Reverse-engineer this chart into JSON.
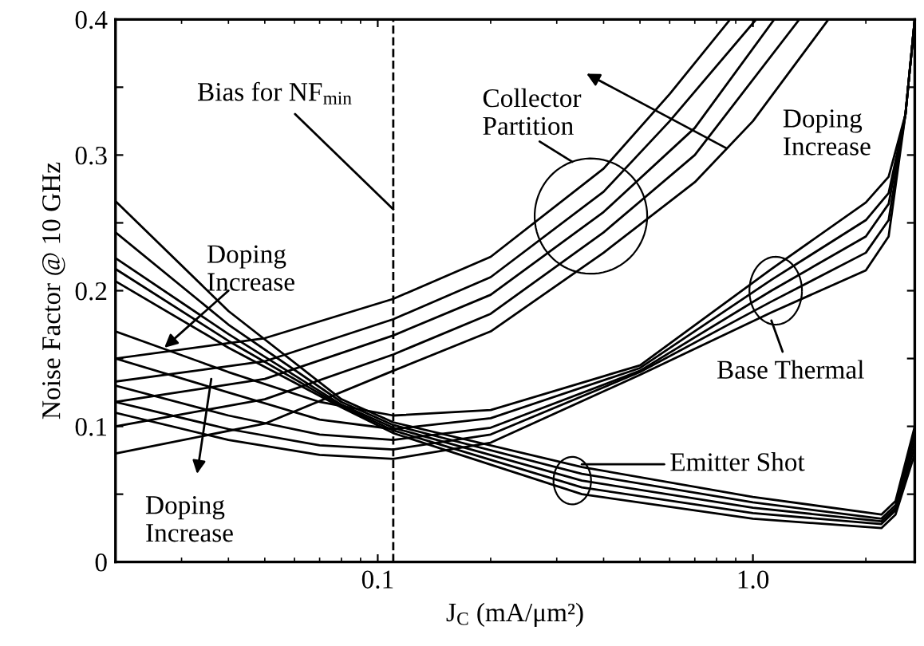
{
  "chart_data": {
    "type": "line",
    "xlabel": "J$_{C}$ (mA/μm²)",
    "ylabel": "Noise Factor @ 10 GHz",
    "log": "x",
    "grid": false,
    "marker": "none",
    "line_style": "solid",
    "xlim": [
      0.02,
      2.7
    ],
    "ylim": [
      0,
      0.4
    ],
    "xticks": [
      0.1,
      {
        "value": 1.0,
        "label": "1.0"
      }
    ],
    "yticks": [
      0,
      {
        "value": 0.05,
        "label": null
      },
      0.1,
      {
        "value": 0.15,
        "label": null
      },
      0.2,
      {
        "value": 0.25,
        "label": null
      },
      0.3,
      {
        "value": 0.35,
        "label": null
      },
      0.4
    ],
    "series": [
      {
        "color": "#000000",
        "x": [
          0.02,
          0.05,
          0.11,
          0.2,
          0.4,
          0.6,
          0.87
        ],
        "values": [
          0.15,
          0.165,
          0.194,
          0.225,
          0.29,
          0.345,
          0.4
        ]
      },
      {
        "color": "#000000",
        "x": [
          0.02,
          0.05,
          0.11,
          0.2,
          0.4,
          0.6,
          1.02
        ],
        "values": [
          0.133,
          0.148,
          0.179,
          0.21,
          0.273,
          0.325,
          0.4
        ]
      },
      {
        "color": "#000000",
        "x": [
          0.02,
          0.05,
          0.11,
          0.2,
          0.4,
          0.7,
          1.14
        ],
        "values": [
          0.118,
          0.135,
          0.167,
          0.197,
          0.258,
          0.32,
          0.4
        ]
      },
      {
        "color": "#000000",
        "x": [
          0.02,
          0.05,
          0.11,
          0.2,
          0.4,
          0.7,
          1.33
        ],
        "values": [
          0.1,
          0.12,
          0.153,
          0.183,
          0.243,
          0.3,
          0.4
        ]
      },
      {
        "color": "#000000",
        "x": [
          0.02,
          0.05,
          0.11,
          0.2,
          0.4,
          0.7,
          1.0,
          1.59
        ],
        "values": [
          0.08,
          0.102,
          0.141,
          0.17,
          0.228,
          0.28,
          0.325,
          0.4
        ]
      },
      {
        "color": "#000000",
        "x": [
          0.02,
          0.04,
          0.07,
          0.11,
          0.2,
          0.5,
          1.12,
          2.0,
          2.3,
          2.55,
          2.7
        ],
        "values": [
          0.17,
          0.14,
          0.118,
          0.108,
          0.112,
          0.145,
          0.216,
          0.265,
          0.284,
          0.33,
          0.4
        ]
      },
      {
        "color": "#000000",
        "x": [
          0.02,
          0.04,
          0.07,
          0.11,
          0.2,
          0.5,
          1.12,
          2.0,
          2.3,
          2.55,
          2.7
        ],
        "values": [
          0.15,
          0.125,
          0.105,
          0.098,
          0.106,
          0.143,
          0.208,
          0.252,
          0.272,
          0.33,
          0.4
        ]
      },
      {
        "color": "#000000",
        "x": [
          0.02,
          0.04,
          0.07,
          0.11,
          0.2,
          0.5,
          1.12,
          2.0,
          2.3,
          2.55,
          2.7
        ],
        "values": [
          0.13,
          0.108,
          0.094,
          0.09,
          0.099,
          0.141,
          0.2,
          0.24,
          0.264,
          0.33,
          0.4
        ]
      },
      {
        "color": "#000000",
        "x": [
          0.02,
          0.04,
          0.07,
          0.11,
          0.2,
          0.5,
          1.12,
          2.0,
          2.3,
          2.55,
          2.7
        ],
        "values": [
          0.118,
          0.098,
          0.086,
          0.083,
          0.094,
          0.14,
          0.192,
          0.228,
          0.252,
          0.33,
          0.4
        ]
      },
      {
        "color": "#000000",
        "x": [
          0.02,
          0.04,
          0.07,
          0.11,
          0.2,
          0.5,
          1.12,
          2.0,
          2.3,
          2.55,
          2.7
        ],
        "values": [
          0.11,
          0.09,
          0.079,
          0.076,
          0.088,
          0.138,
          0.184,
          0.215,
          0.24,
          0.33,
          0.4
        ]
      },
      {
        "color": "#000000",
        "x": [
          0.02,
          0.04,
          0.08,
          0.11,
          0.35,
          1.0,
          2.2,
          2.4,
          2.7
        ],
        "values": [
          0.266,
          0.185,
          0.12,
          0.103,
          0.07,
          0.048,
          0.035,
          0.045,
          0.1
        ]
      },
      {
        "color": "#000000",
        "x": [
          0.02,
          0.04,
          0.08,
          0.11,
          0.35,
          1.0,
          2.2,
          2.4,
          2.7
        ],
        "values": [
          0.243,
          0.175,
          0.118,
          0.101,
          0.065,
          0.044,
          0.032,
          0.042,
          0.095
        ]
      },
      {
        "color": "#000000",
        "x": [
          0.02,
          0.04,
          0.08,
          0.11,
          0.35,
          1.0,
          2.2,
          2.4,
          2.7
        ],
        "values": [
          0.224,
          0.168,
          0.116,
          0.099,
          0.06,
          0.04,
          0.03,
          0.04,
          0.09
        ]
      },
      {
        "color": "#000000",
        "x": [
          0.02,
          0.04,
          0.08,
          0.11,
          0.35,
          1.0,
          2.2,
          2.4,
          2.7
        ],
        "values": [
          0.216,
          0.163,
          0.115,
          0.097,
          0.055,
          0.036,
          0.028,
          0.038,
          0.085
        ]
      },
      {
        "color": "#000000",
        "x": [
          0.02,
          0.04,
          0.08,
          0.11,
          0.35,
          1.0,
          2.2,
          2.4,
          2.7
        ],
        "values": [
          0.207,
          0.158,
          0.114,
          0.095,
          0.05,
          0.032,
          0.025,
          0.035,
          0.08
        ]
      }
    ],
    "ref_lines": [
      {
        "axis": "x",
        "value": 0.11,
        "label": "Bias for NF$_{min}$",
        "color": "#000000",
        "line_style": "dashed"
      }
    ],
    "annotations": [
      "Collector\nPartition",
      "Doping\nIncrease",
      {
        "text": "Doping\nIncrease",
        "x": 0.027,
        "y": 0.158
      },
      "Doping\nIncrease",
      {
        "text": "Base Thermal",
        "x": 1.12,
        "y": 0.178
      },
      "Emitter Shot"
    ]
  }
}
